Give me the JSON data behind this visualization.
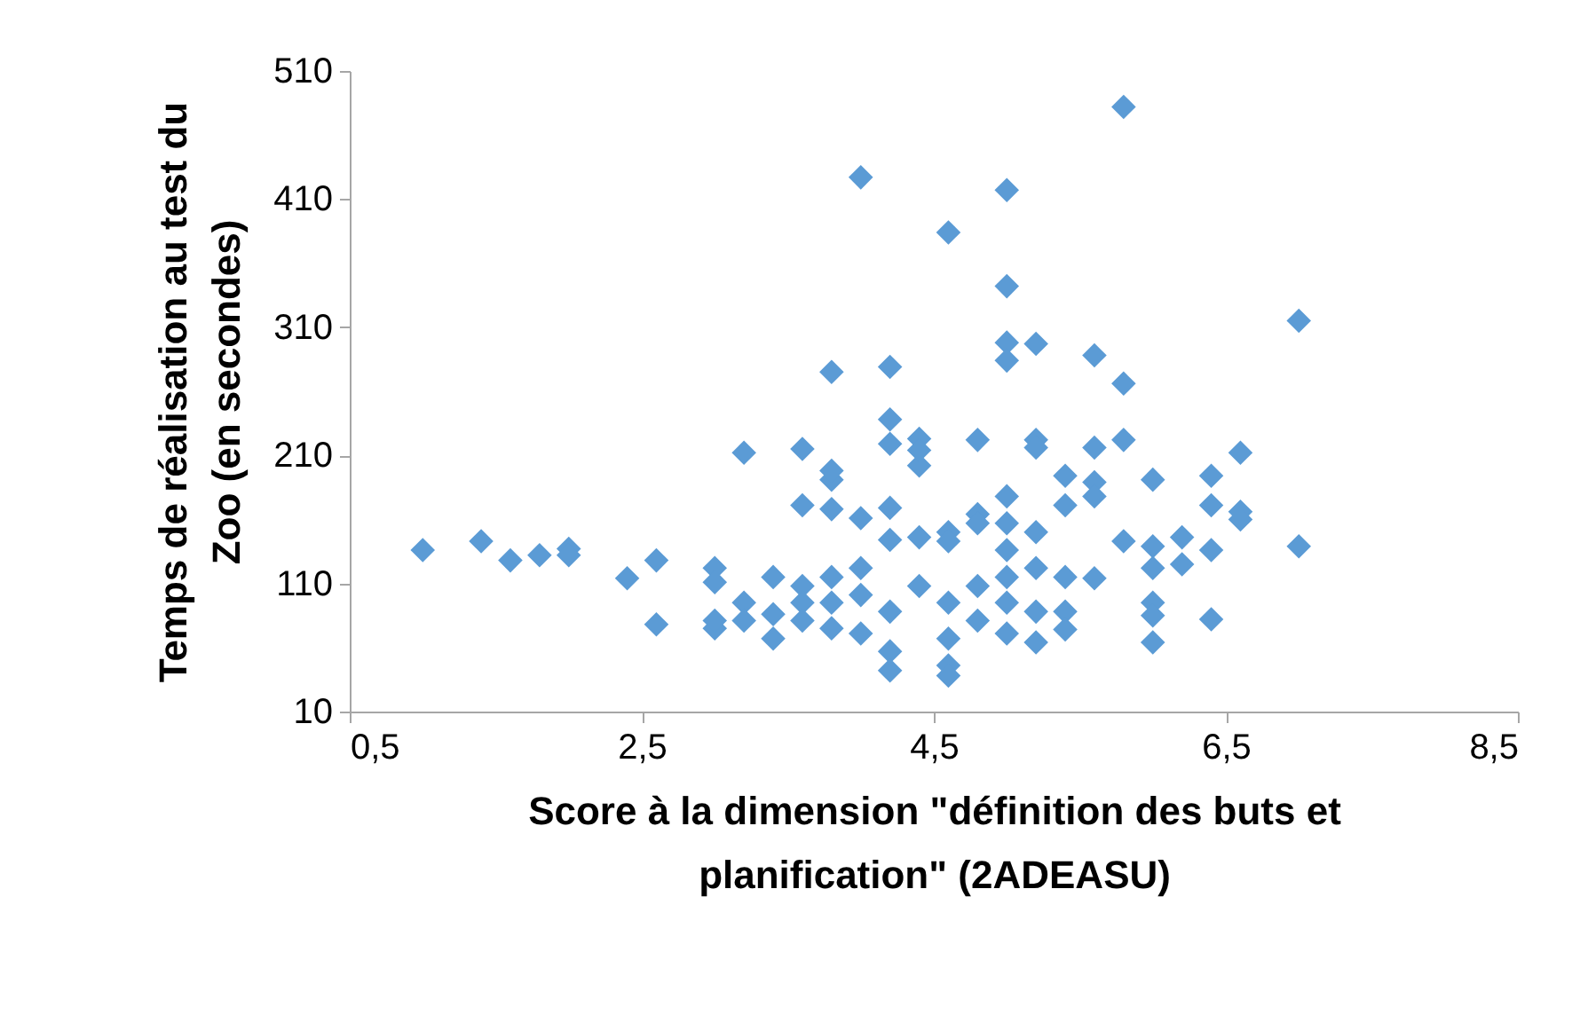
{
  "chart_data": {
    "type": "scatter",
    "xlabel": "Score à la dimension \"définition des buts et\nplanification\" (2ADEASU)",
    "ylabel": "Temps de réalisation au test du\nZoo (en secondes)",
    "marker": "diamond",
    "xlim": [
      0.5,
      8.5
    ],
    "xticks": [
      {
        "value": 0.5,
        "label": "0,5"
      },
      {
        "value": 2.5,
        "label": "2,5"
      },
      {
        "value": 4.5,
        "label": "4,5"
      },
      {
        "value": 6.5,
        "label": "6,5"
      },
      {
        "value": 8.5,
        "label": "8,5"
      }
    ],
    "ylim": [
      10,
      510
    ],
    "yticks": [
      10,
      110,
      210,
      310,
      410,
      510
    ],
    "series": [
      {
        "color": "#5b9bd5",
        "x": [
          1.0,
          1.4,
          1.6,
          1.8,
          2.0,
          2.0,
          2.4,
          2.6,
          2.6,
          3.0,
          3.0,
          3.0,
          3.0,
          3.2,
          3.2,
          3.2,
          3.4,
          3.4,
          3.4,
          3.6,
          3.6,
          3.6,
          3.6,
          3.6,
          3.8,
          3.8,
          3.8,
          3.8,
          3.8,
          3.8,
          3.8,
          4.0,
          4.0,
          4.0,
          4.0,
          4.0,
          4.2,
          4.2,
          4.2,
          4.2,
          4.2,
          4.2,
          4.2,
          4.2,
          4.4,
          4.4,
          4.4,
          4.4,
          4.4,
          4.6,
          4.6,
          4.6,
          4.6,
          4.6,
          4.6,
          4.6,
          4.8,
          4.8,
          4.8,
          4.8,
          4.8,
          5.0,
          5.0,
          5.0,
          5.0,
          5.0,
          5.0,
          5.0,
          5.0,
          5.0,
          5.0,
          5.2,
          5.2,
          5.2,
          5.2,
          5.2,
          5.2,
          5.2,
          5.4,
          5.4,
          5.4,
          5.4,
          5.4,
          5.6,
          5.6,
          5.6,
          5.6,
          5.6,
          5.8,
          5.8,
          5.8,
          5.8,
          6.0,
          6.0,
          6.0,
          6.0,
          6.0,
          6.0,
          6.2,
          6.2,
          6.4,
          6.4,
          6.4,
          6.4,
          6.6,
          6.6,
          6.6,
          7.0,
          7.0
        ],
        "values": [
          136,
          143,
          128,
          132,
          137,
          132,
          114,
          128,
          78,
          122,
          111,
          75,
          81,
          212,
          95,
          81,
          115,
          67,
          86,
          215,
          171,
          108,
          95,
          81,
          275,
          191,
          198,
          168,
          115,
          95,
          75,
          427,
          161,
          122,
          101,
          71,
          279,
          238,
          219,
          169,
          144,
          88,
          57,
          42,
          223,
          202,
          214,
          146,
          108,
          384,
          150,
          143,
          95,
          67,
          46,
          38,
          222,
          164,
          157,
          108,
          81,
          417,
          342,
          298,
          284,
          178,
          157,
          136,
          115,
          95,
          71,
          297,
          222,
          216,
          150,
          122,
          88,
          64,
          194,
          171,
          115,
          88,
          74,
          288,
          216,
          189,
          178,
          114,
          482,
          266,
          222,
          143,
          191,
          139,
          122,
          95,
          85,
          64,
          146,
          125,
          194,
          171,
          136,
          82,
          212,
          166,
          160,
          315,
          139
        ]
      }
    ]
  }
}
